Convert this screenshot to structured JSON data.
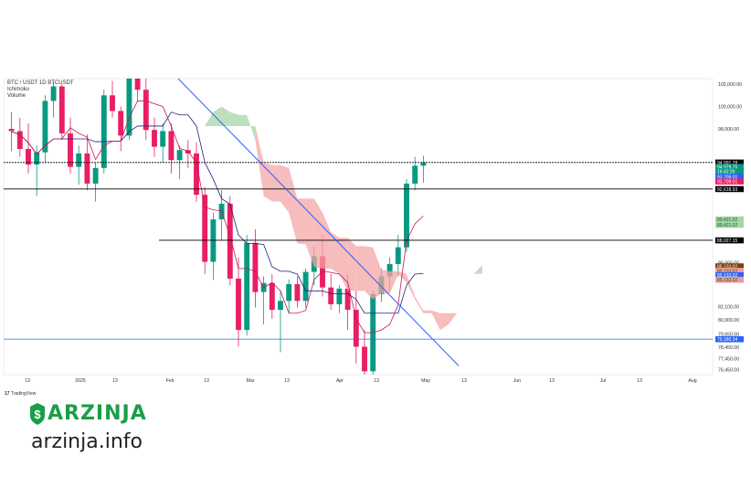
{
  "legend": {
    "symbol": "BTC / USDT 1D BTCUSDT",
    "line2": "Ichimoku",
    "line3": "Volume"
  },
  "branding": {
    "tradingview": "TradingView",
    "logo": "ARZINJA",
    "site": "arzinja.info"
  },
  "price_scale": [
    "102,000.00",
    "100,000.00",
    "98,000.00",
    "90,000.00",
    "86,000.00",
    "82,100.00",
    "80,900.00",
    "79,650.00",
    "78,450.00",
    "77,450.00",
    "76,450.00"
  ],
  "price_tags": [
    {
      "value": "94,991.78",
      "bg": "#000000"
    },
    {
      "value": "94,979.75",
      "bg": "#089981"
    },
    {
      "value": "16:42:29",
      "bg": "#089981"
    },
    {
      "value": "93,709.01",
      "bg": "#2962ff"
    },
    {
      "value": "93,709.01",
      "bg": "#e91e63"
    },
    {
      "value": "92,618.93",
      "bg": "#000000"
    },
    {
      "value": "89,421.02",
      "bg": "#a5d6a7"
    },
    {
      "value": "89,421.02",
      "bg": "#a5d6a7"
    },
    {
      "value": "88,027.15",
      "bg": "#000000"
    },
    {
      "value": "85,133.02",
      "bg": "#7b3f00"
    },
    {
      "value": "85,133.02",
      "bg": "#ef9a9a"
    },
    {
      "value": "85,133.02",
      "bg": "#2962ff"
    },
    {
      "value": "85,133.02",
      "bg": "#ef9a9a"
    },
    {
      "value": "79,180.34",
      "bg": "#2962ff"
    }
  ],
  "time_axis": [
    "13",
    "2025",
    "13",
    "Feb",
    "13",
    "Mar",
    "13",
    "Apr",
    "13",
    "May",
    "13",
    "Jun",
    "13",
    "Jul",
    "13",
    "Aug"
  ],
  "chart_data": {
    "type": "candlestick",
    "ylim": [
      76000,
      102500
    ],
    "colors": {
      "up": "#089981",
      "down": "#e91e63",
      "cloud_bull": "#a5d6a7",
      "cloud_bear": "#f4a6a6",
      "base": "#1a237e",
      "conv": "#c2185b",
      "trend": "#2962ff"
    },
    "horizontal_levels": [
      94991.78,
      92618.93,
      88027.15,
      79180.34
    ],
    "candles_approx": [
      [
        98000,
        99500,
        96000,
        97800
      ],
      [
        97800,
        99000,
        95500,
        96200
      ],
      [
        96200,
        98500,
        94000,
        94800
      ],
      [
        94800,
        96500,
        92000,
        95900
      ],
      [
        95900,
        101000,
        95000,
        100500
      ],
      [
        100500,
        102200,
        99000,
        101800
      ],
      [
        101800,
        102000,
        97000,
        97600
      ],
      [
        97600,
        99000,
        94000,
        94600
      ],
      [
        94600,
        96500,
        93000,
        95800
      ],
      [
        95800,
        97500,
        92500,
        93100
      ],
      [
        93100,
        95000,
        91500,
        94500
      ],
      [
        94500,
        101500,
        94000,
        101000
      ],
      [
        101000,
        102300,
        99000,
        99600
      ],
      [
        99600,
        100000,
        96000,
        97400
      ],
      [
        97400,
        104000,
        97000,
        103000
      ],
      [
        103000,
        105000,
        100500,
        101500
      ],
      [
        101500,
        102500,
        97000,
        97900
      ],
      [
        97900,
        99000,
        95500,
        96400
      ],
      [
        96400,
        98500,
        95000,
        97800
      ],
      [
        97800,
        98500,
        94000,
        95200
      ],
      [
        95200,
        96500,
        93500,
        96100
      ],
      [
        96100,
        97000,
        94500,
        95800
      ],
      [
        95800,
        96800,
        91500,
        92100
      ],
      [
        92100,
        92800,
        85000,
        86100
      ],
      [
        86100,
        90500,
        84500,
        89900
      ],
      [
        89900,
        92500,
        88000,
        91300
      ],
      [
        91300,
        92000,
        84000,
        84600
      ],
      [
        84600,
        86500,
        78500,
        80000
      ],
      [
        80000,
        88500,
        79500,
        87800
      ],
      [
        87800,
        89000,
        82000,
        83400
      ],
      [
        83400,
        84800,
        80500,
        84200
      ],
      [
        84200,
        85000,
        81000,
        81800
      ],
      [
        81800,
        83500,
        78000,
        82600
      ],
      [
        82600,
        84500,
        81500,
        84100
      ],
      [
        84100,
        84800,
        82000,
        82600
      ],
      [
        82600,
        85500,
        82000,
        85200
      ],
      [
        85200,
        87500,
        84000,
        86600
      ],
      [
        86600,
        88500,
        83000,
        83800
      ],
      [
        83800,
        85000,
        81800,
        82300
      ],
      [
        82300,
        84000,
        81500,
        83700
      ],
      [
        83700,
        85000,
        80000,
        81800
      ],
      [
        81800,
        83500,
        77000,
        78500
      ],
      [
        78500,
        80000,
        74500,
        76300
      ],
      [
        76300,
        83500,
        76000,
        83200
      ],
      [
        83200,
        85500,
        82500,
        84800
      ],
      [
        84800,
        86500,
        83500,
        85900
      ],
      [
        85900,
        88500,
        84800,
        87400
      ],
      [
        87400,
        93500,
        87000,
        93100
      ],
      [
        93100,
        95500,
        92500,
        94700
      ],
      [
        94700,
        95600,
        93200,
        94980
      ]
    ]
  }
}
